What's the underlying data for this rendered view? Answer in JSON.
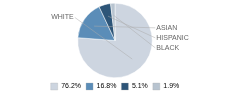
{
  "chart_data": {
    "type": "pie",
    "categories": [
      "WHITE",
      "ASIAN",
      "HISPANIC",
      "BLACK"
    ],
    "values": [
      76.2,
      16.8,
      5.1,
      1.9
    ],
    "value_labels": [
      "76.2%",
      "16.8%",
      "5.1%",
      "1.9%"
    ],
    "colors": [
      "#cdd5e0",
      "#5b8db8",
      "#2d5578",
      "#b8c4d0"
    ],
    "legend": "bottom"
  }
}
